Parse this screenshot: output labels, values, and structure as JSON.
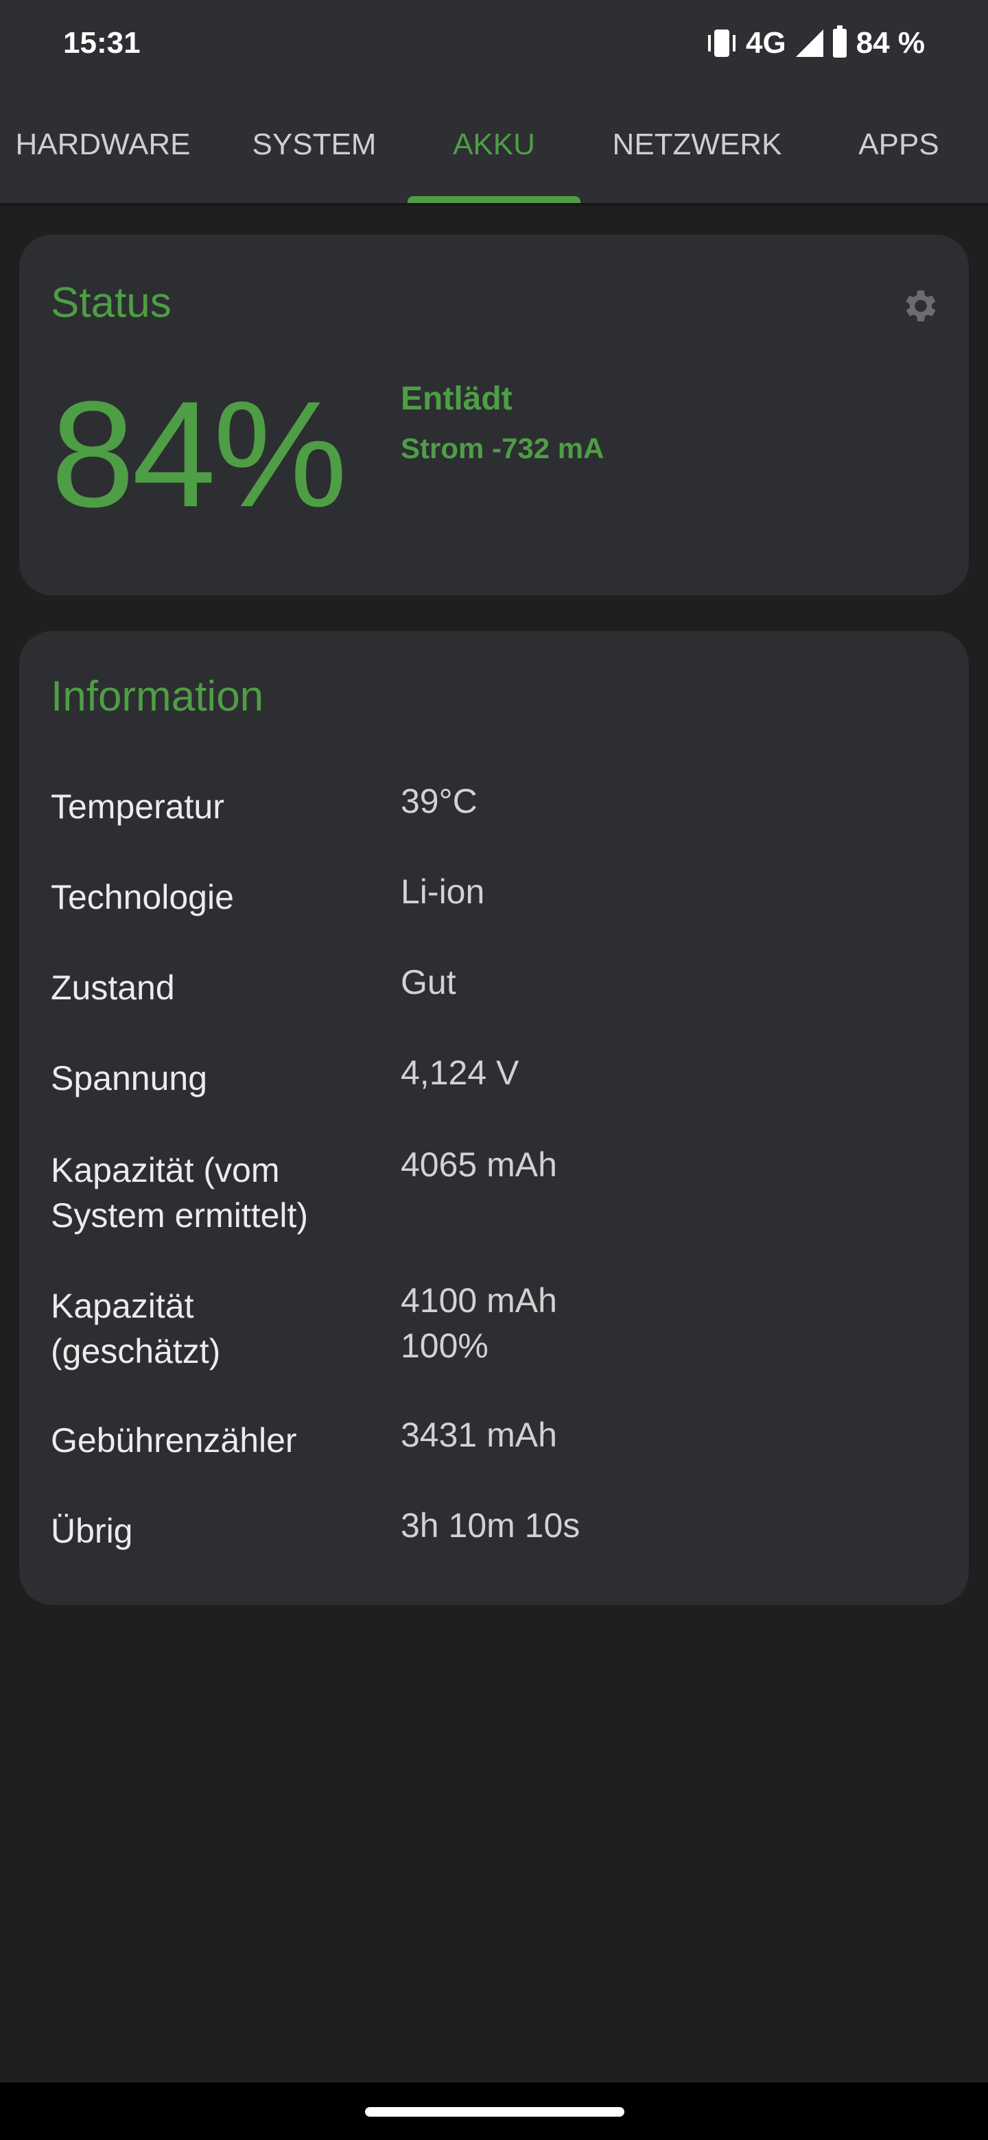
{
  "status_bar": {
    "time": "15:31",
    "network": "4G",
    "battery": "84 %",
    "icons": [
      "vibrate-icon",
      "signal-icon",
      "battery-icon"
    ]
  },
  "tabs": [
    {
      "label": "HARDWARE"
    },
    {
      "label": "SYSTEM"
    },
    {
      "label": "AKKU",
      "active": true
    },
    {
      "label": "NETZWERK"
    },
    {
      "label": "APPS"
    }
  ],
  "status_card": {
    "title": "Status",
    "level": "84%",
    "state": "Entlädt",
    "current": "Strom -732 mA",
    "icon": "gear-icon"
  },
  "info_card": {
    "title": "Information",
    "rows": [
      {
        "label": "Temperatur",
        "value": "39°C"
      },
      {
        "label": "Technologie",
        "value": "Li-ion"
      },
      {
        "label": "Zustand",
        "value": "Gut"
      },
      {
        "label": "Spannung",
        "value": "4,124 V"
      },
      {
        "label": "Kapazität (vom System ermittelt)",
        "value": "4065 mAh"
      },
      {
        "label": "Kapazität (geschätzt)",
        "value": "4100 mAh\n100%"
      },
      {
        "label": "Gebührenzähler",
        "value": "3431 mAh"
      },
      {
        "label": "Übrig",
        "value": "3h 10m 10s"
      }
    ]
  },
  "colors": {
    "accent": "#4e9e45",
    "card": "#2d2e32",
    "background": "#1f1f1f",
    "topbar": "#2e2f33"
  }
}
